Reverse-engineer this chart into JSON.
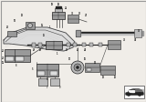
{
  "bg_color": "#f0ede8",
  "line_color": "#444444",
  "dark_color": "#222222",
  "part_color": "#999999",
  "mid_gray": "#bbbbbb",
  "light_gray": "#dddddd",
  "white": "#f8f8f8"
}
